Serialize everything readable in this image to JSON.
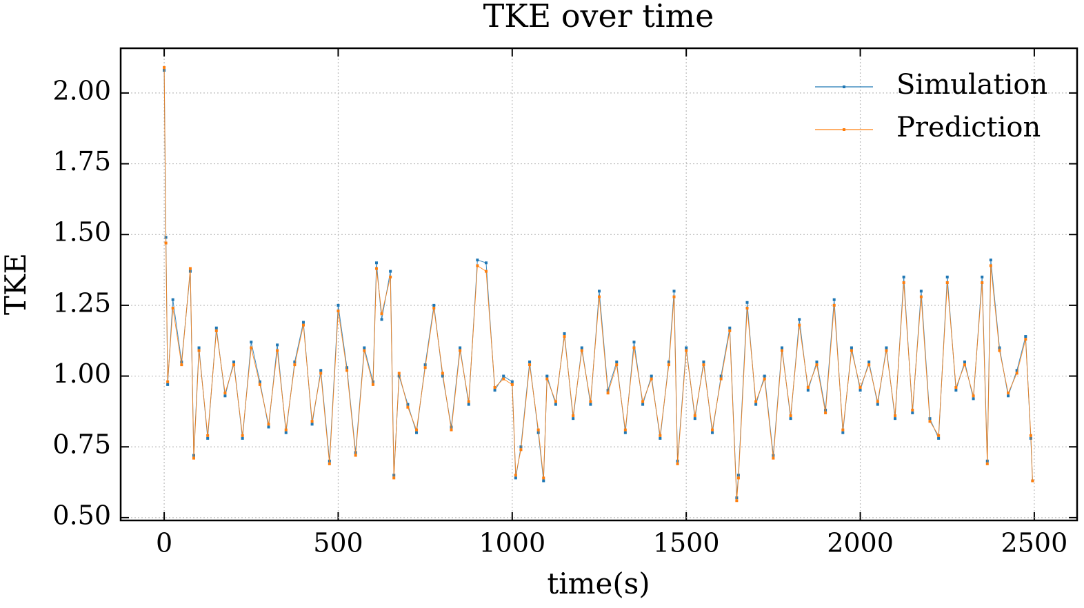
{
  "chart_data": {
    "type": "line",
    "title": "TKE over time",
    "x_label": "time(s)",
    "y_label": "TKE",
    "x": [
      0,
      5,
      10,
      25,
      50,
      75,
      85,
      100,
      125,
      150,
      175,
      200,
      225,
      250,
      275,
      300,
      325,
      350,
      375,
      400,
      425,
      450,
      475,
      500,
      525,
      550,
      575,
      600,
      610,
      625,
      650,
      660,
      675,
      700,
      725,
      750,
      775,
      800,
      825,
      850,
      875,
      900,
      925,
      950,
      975,
      1000,
      1010,
      1025,
      1050,
      1075,
      1090,
      1100,
      1125,
      1150,
      1175,
      1200,
      1225,
      1250,
      1275,
      1300,
      1325,
      1350,
      1375,
      1400,
      1425,
      1450,
      1465,
      1475,
      1500,
      1525,
      1550,
      1575,
      1600,
      1625,
      1645,
      1650,
      1675,
      1700,
      1725,
      1750,
      1775,
      1800,
      1825,
      1850,
      1875,
      1900,
      1925,
      1950,
      1975,
      2000,
      2025,
      2050,
      2075,
      2100,
      2125,
      2150,
      2175,
      2200,
      2225,
      2250,
      2275,
      2300,
      2325,
      2350,
      2365,
      2375,
      2400,
      2425,
      2450,
      2475,
      2490,
      2495
    ],
    "series": [
      {
        "name": "Simulation",
        "color": "#1f77b4",
        "values": [
          2.08,
          1.49,
          0.97,
          1.27,
          1.05,
          1.37,
          0.72,
          1.1,
          0.78,
          1.17,
          0.93,
          1.05,
          0.78,
          1.12,
          0.98,
          0.82,
          1.11,
          0.8,
          1.05,
          1.19,
          0.83,
          1.02,
          0.7,
          1.25,
          1.03,
          0.73,
          1.1,
          0.98,
          1.4,
          1.2,
          1.37,
          0.65,
          1.0,
          0.9,
          0.8,
          1.04,
          1.25,
          1.0,
          0.82,
          1.1,
          0.9,
          1.41,
          1.4,
          0.95,
          1.0,
          0.98,
          0.64,
          0.75,
          1.05,
          0.8,
          0.63,
          1.0,
          0.9,
          1.15,
          0.85,
          1.1,
          0.9,
          1.3,
          0.95,
          1.05,
          0.8,
          1.12,
          0.9,
          1.0,
          0.78,
          1.05,
          1.3,
          0.7,
          1.1,
          0.85,
          1.05,
          0.8,
          1.0,
          1.17,
          0.57,
          0.65,
          1.26,
          0.9,
          1.0,
          0.72,
          1.1,
          0.85,
          1.2,
          0.95,
          1.05,
          0.88,
          1.27,
          0.8,
          1.1,
          0.95,
          1.05,
          0.9,
          1.1,
          0.85,
          1.35,
          0.87,
          1.3,
          0.85,
          0.78,
          1.35,
          0.95,
          1.05,
          0.92,
          1.35,
          0.7,
          1.41,
          1.1,
          0.93,
          1.02,
          1.14,
          0.78,
          0.63
        ]
      },
      {
        "name": "Prediction",
        "color": "#ff7f0e",
        "values": [
          2.09,
          1.47,
          0.98,
          1.24,
          1.04,
          1.38,
          0.71,
          1.09,
          0.79,
          1.16,
          0.94,
          1.04,
          0.79,
          1.1,
          0.97,
          0.83,
          1.09,
          0.81,
          1.04,
          1.18,
          0.84,
          1.01,
          0.69,
          1.23,
          1.02,
          0.72,
          1.09,
          0.97,
          1.38,
          1.22,
          1.35,
          0.64,
          1.01,
          0.89,
          0.81,
          1.03,
          1.24,
          1.01,
          0.81,
          1.09,
          0.91,
          1.39,
          1.37,
          0.96,
          0.99,
          0.97,
          0.65,
          0.74,
          1.04,
          0.81,
          0.64,
          0.99,
          0.91,
          1.14,
          0.86,
          1.09,
          0.91,
          1.28,
          0.94,
          1.04,
          0.81,
          1.1,
          0.91,
          0.99,
          0.79,
          1.04,
          1.28,
          0.69,
          1.09,
          0.86,
          1.04,
          0.81,
          0.99,
          1.16,
          0.56,
          0.64,
          1.24,
          0.91,
          0.99,
          0.71,
          1.09,
          0.86,
          1.18,
          0.96,
          1.04,
          0.87,
          1.25,
          0.81,
          1.09,
          0.96,
          1.04,
          0.91,
          1.09,
          0.86,
          1.33,
          0.88,
          1.28,
          0.84,
          0.79,
          1.33,
          0.96,
          1.04,
          0.93,
          1.33,
          0.69,
          1.39,
          1.09,
          0.94,
          1.01,
          1.13,
          0.79,
          0.63
        ]
      }
    ],
    "xlim": [
      -125,
      2623
    ],
    "ylim": [
      0.49,
      2.158
    ],
    "xticks": [
      0,
      500,
      1000,
      1500,
      2000,
      2500
    ],
    "yticks": [
      {
        "value": 0.5,
        "label": "0.50"
      },
      {
        "value": 0.75,
        "label": "0.75"
      },
      {
        "value": 1.0,
        "label": "1.00"
      },
      {
        "value": 1.25,
        "label": "1.25"
      },
      {
        "value": 1.5,
        "label": "1.50"
      },
      {
        "value": 1.75,
        "label": "1.75"
      },
      {
        "value": 2.0,
        "label": "2.00"
      }
    ],
    "grid": true,
    "legend": "upper right"
  }
}
